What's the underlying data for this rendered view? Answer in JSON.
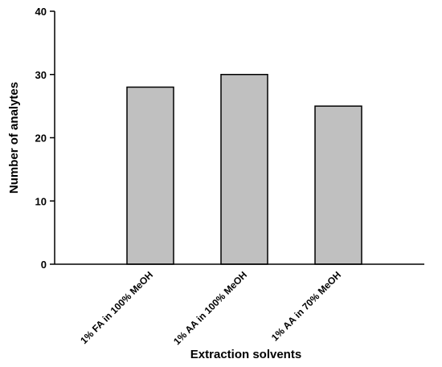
{
  "chart_data": {
    "type": "bar",
    "title": "",
    "xlabel": "Extraction solvents",
    "ylabel": "Number of analytes",
    "categories": [
      "1% FA in 100% MeOH",
      "1% AA in 100% MeOH",
      "1% AA in 70% MeOH"
    ],
    "values": [
      28,
      30,
      25
    ],
    "ylim": [
      0,
      40
    ],
    "yticks": [
      0,
      10,
      20,
      30,
      40
    ],
    "grid": false,
    "legend": "none",
    "bar_color": "#c0c0c0",
    "edge_color": "#000000"
  }
}
